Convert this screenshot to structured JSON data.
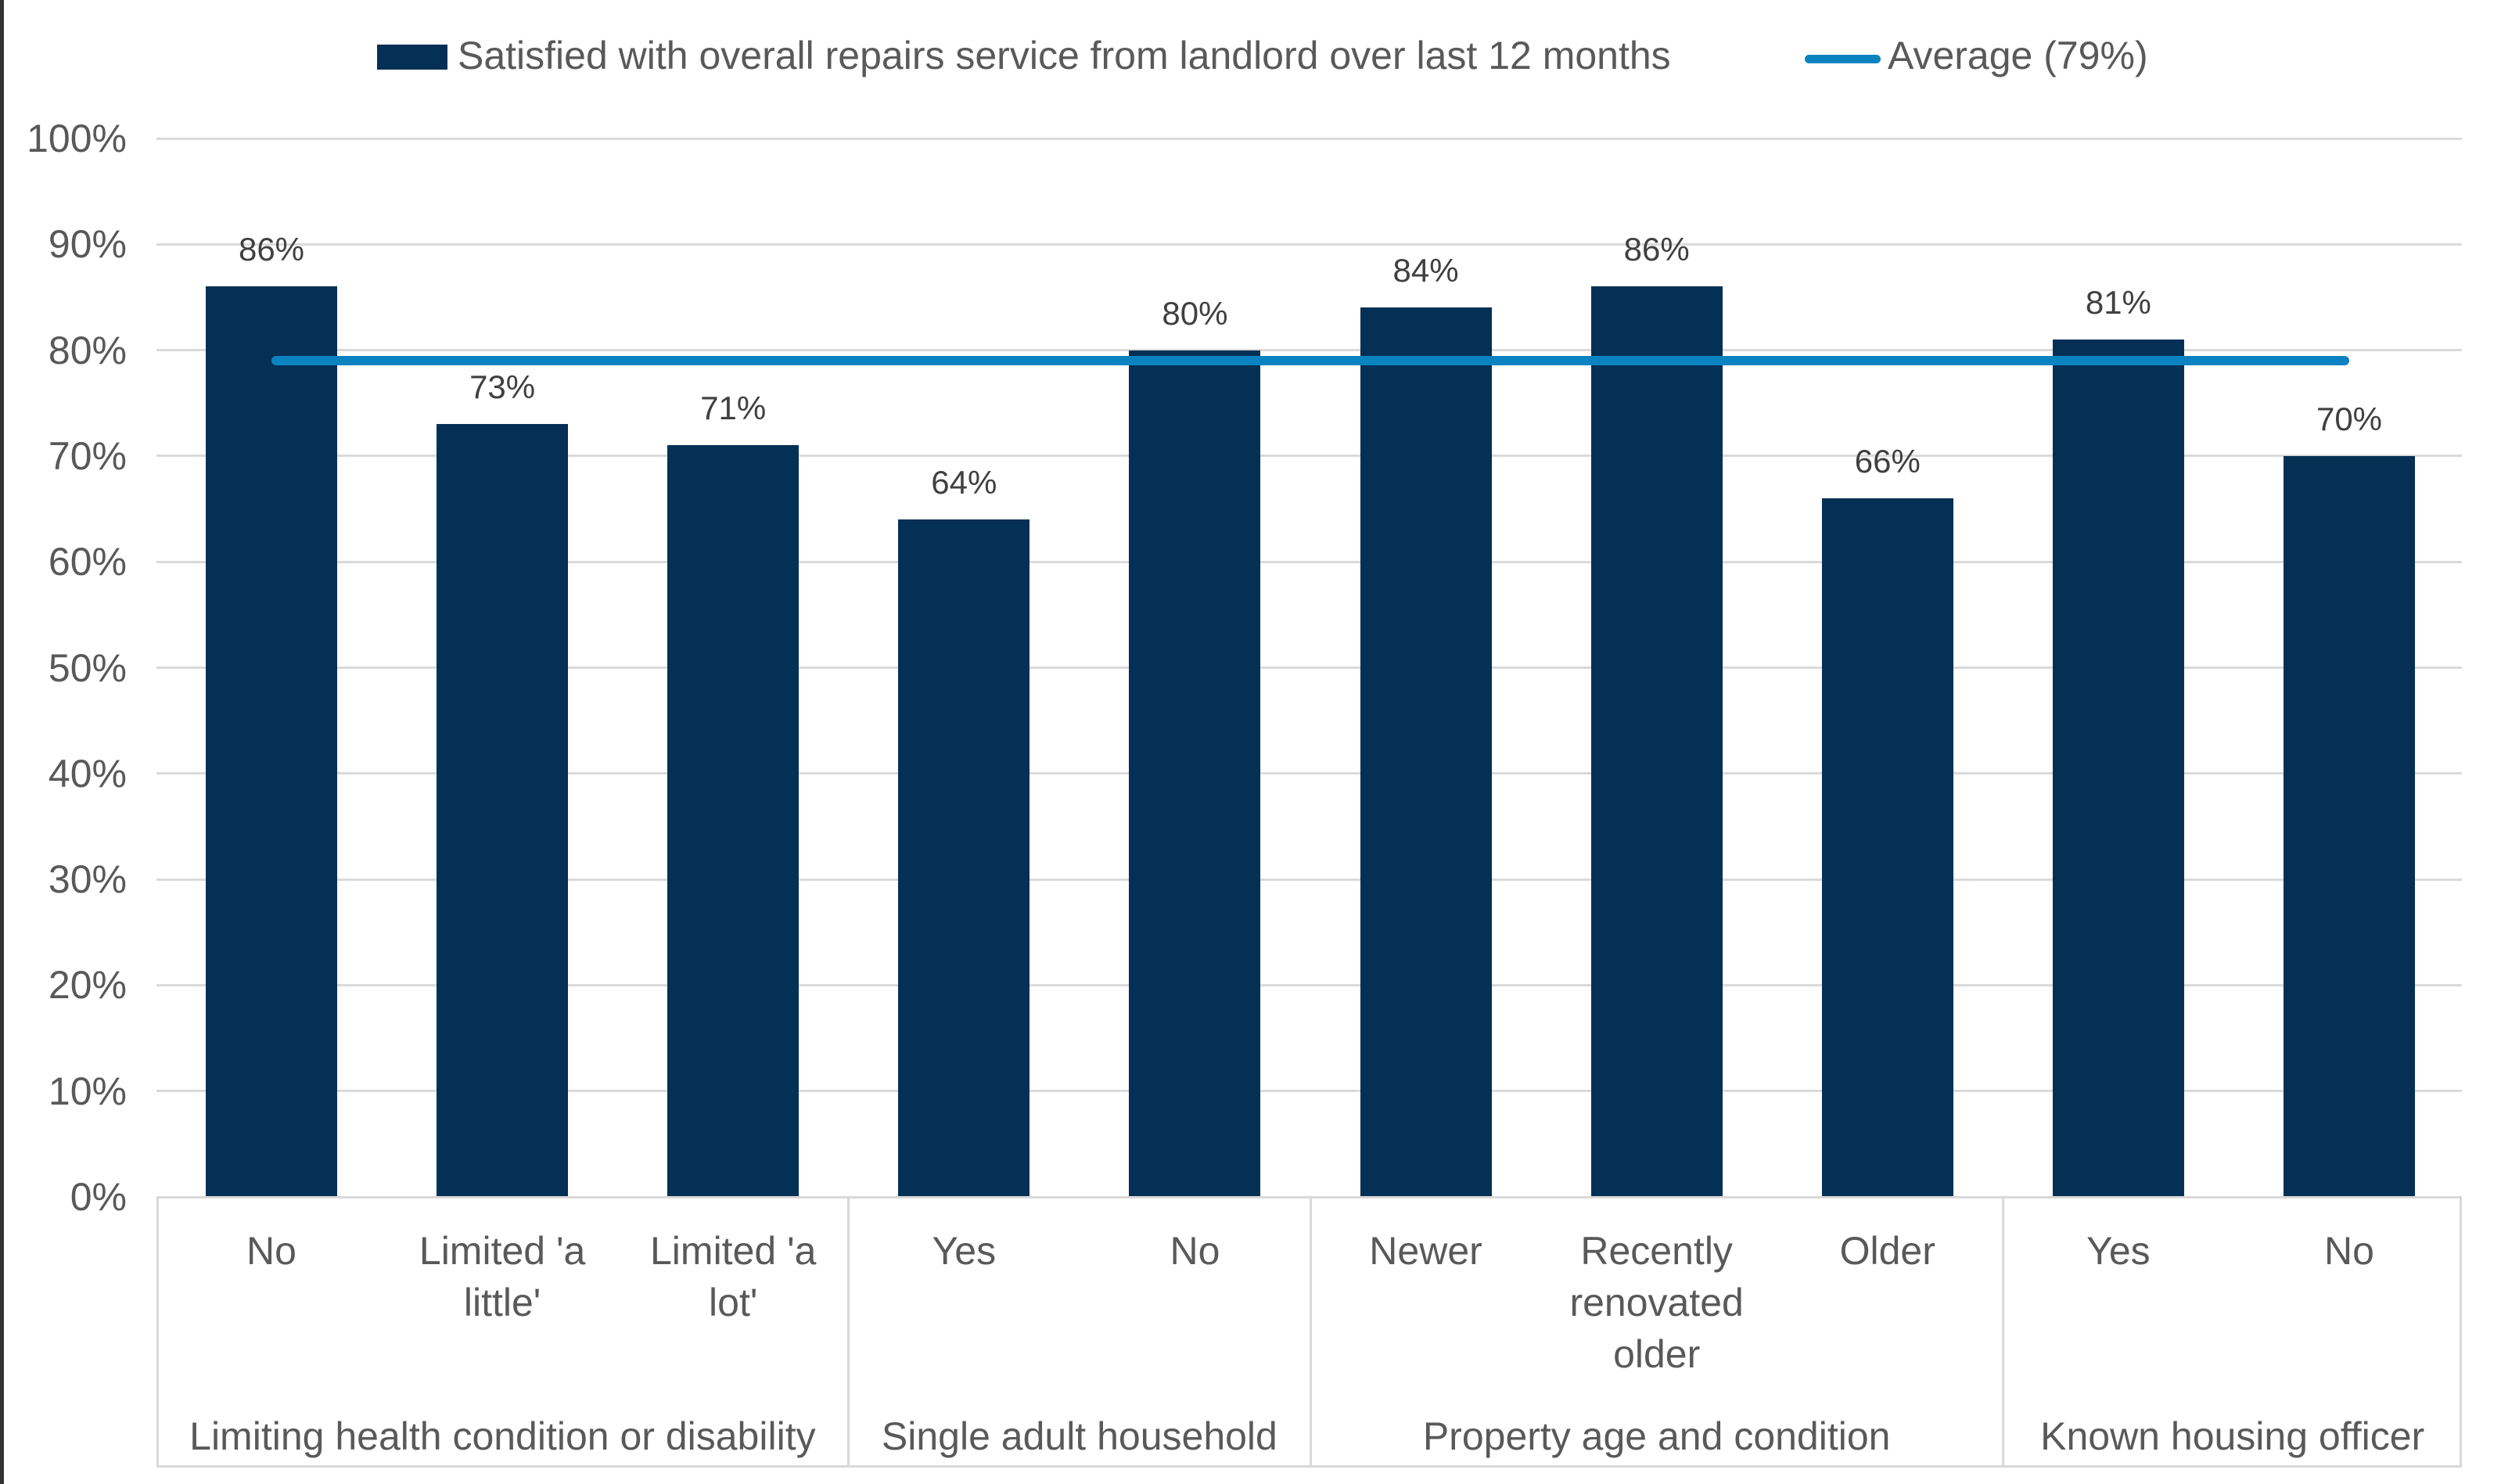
{
  "chart_data": {
    "type": "bar",
    "title": "",
    "legend": [
      {
        "label": "Satisfied with overall repairs service from landlord over last 12 months",
        "marker": "square",
        "color": "#043055"
      },
      {
        "label": "Average (79%)",
        "marker": "line",
        "color": "#0b83c1"
      }
    ],
    "average": {
      "value": 79,
      "label": "Average (79%)"
    },
    "y_axis": {
      "min": 0,
      "max": 100,
      "tick_step": 10,
      "tick_labels": [
        "0%",
        "10%",
        "20%",
        "30%",
        "40%",
        "50%",
        "60%",
        "70%",
        "80%",
        "90%",
        "100%"
      ],
      "grid": true
    },
    "legend_position": "top",
    "groups": [
      {
        "label": "Limiting health condition or disability",
        "categories": [
          "No",
          "Limited 'a little'",
          "Limited 'a lot'"
        ],
        "category_lines": [
          [
            "No"
          ],
          [
            "Limited 'a",
            "little'"
          ],
          [
            "Limited 'a",
            "lot'"
          ]
        ],
        "values": [
          86,
          73,
          71
        ],
        "value_labels": [
          "86%",
          "73%",
          "71%"
        ]
      },
      {
        "label": "Single adult household",
        "categories": [
          "Yes",
          "No"
        ],
        "category_lines": [
          [
            "Yes"
          ],
          [
            "No"
          ]
        ],
        "values": [
          64,
          80
        ],
        "value_labels": [
          "64%",
          "80%"
        ]
      },
      {
        "label": "Property age and condition",
        "categories": [
          "Newer",
          "Recently renovated older",
          "Older"
        ],
        "category_lines": [
          [
            "Newer"
          ],
          [
            "Recently",
            "renovated",
            "older"
          ],
          [
            "Older"
          ]
        ],
        "values": [
          84,
          86,
          66
        ],
        "value_labels": [
          "84%",
          "86%",
          "66%"
        ]
      },
      {
        "label": "Known housing officer",
        "categories": [
          "Yes",
          "No"
        ],
        "category_lines": [
          [
            "Yes"
          ],
          [
            "No"
          ]
        ],
        "values": [
          81,
          70
        ],
        "value_labels": [
          "81%",
          "70%"
        ]
      }
    ],
    "colors": {
      "bar": "#043055",
      "average_line": "#0b83c1",
      "gridline": "#dadada",
      "axis_text": "#595959",
      "value_label_text": "#404040",
      "frame": "#d9d9d9"
    }
  }
}
